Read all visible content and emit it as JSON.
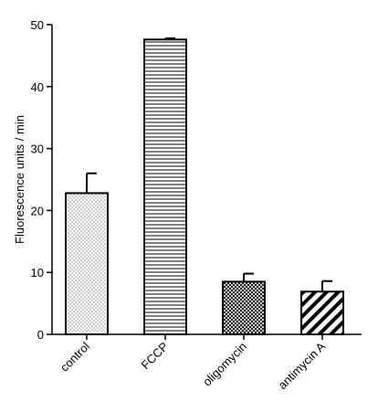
{
  "chart_data": {
    "type": "bar",
    "title": "",
    "xlabel": "",
    "ylabel": "Fluorescence units / min",
    "ylim": [
      0,
      50
    ],
    "yticks": [
      0,
      10,
      20,
      30,
      40,
      50
    ],
    "categories": [
      "control",
      "FCCP",
      "oligomycin",
      "antimycin A"
    ],
    "values": [
      22.8,
      47.6,
      8.5,
      6.9
    ],
    "errors": [
      3.2,
      0.2,
      1.3,
      1.7
    ],
    "patterns": [
      "dots",
      "horizontal-lines",
      "crosshatch",
      "diagonal-stripes"
    ],
    "grid": false,
    "legend": "none"
  }
}
